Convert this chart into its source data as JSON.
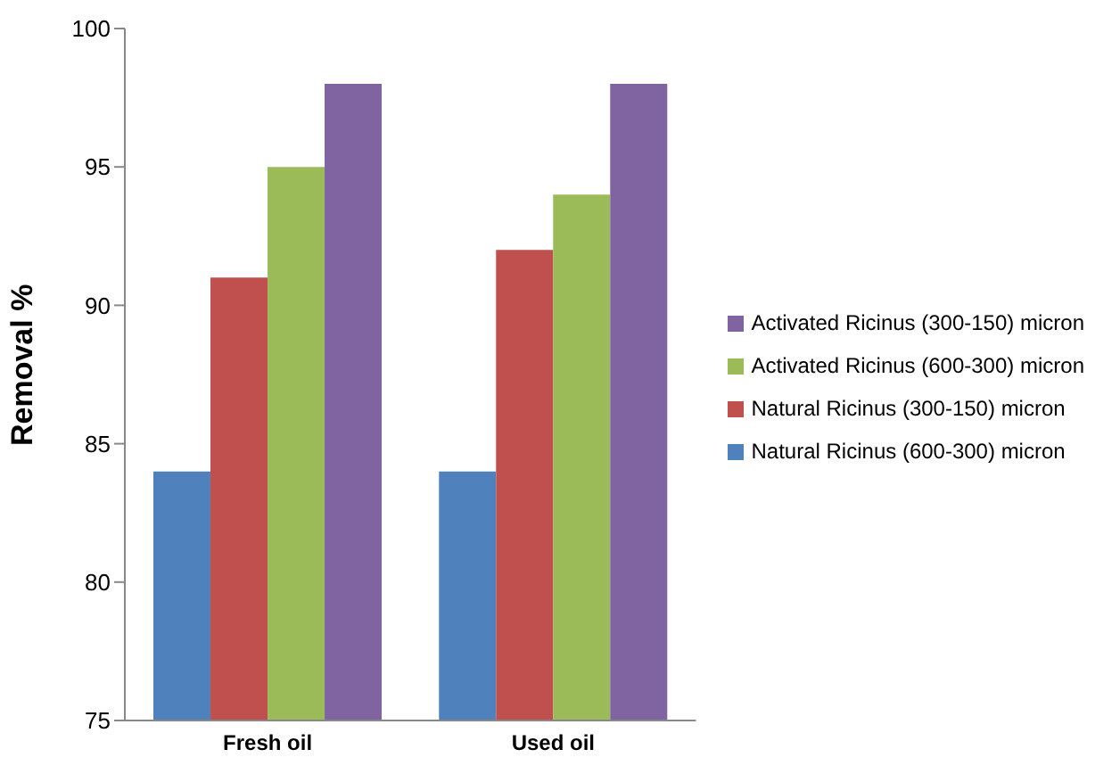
{
  "chart_data": {
    "type": "bar",
    "ylabel": "Removal %",
    "categories": [
      "Fresh oil",
      "Used oil"
    ],
    "series": [
      {
        "name": "Natural Ricinus (600-300) micron",
        "color": "#4f81bd",
        "values": [
          84,
          84
        ]
      },
      {
        "name": "Natural Ricinus (300-150) micron",
        "color": "#c0504d",
        "values": [
          91,
          92
        ]
      },
      {
        "name": "Activated Ricinus (600-300) micron",
        "color": "#9bbb59",
        "values": [
          95,
          94
        ]
      },
      {
        "name": "Activated Ricinus (300-150) micron",
        "color": "#8064a2",
        "values": [
          98,
          98
        ]
      }
    ],
    "ylim": [
      75,
      100
    ],
    "yticks": [
      75,
      80,
      85,
      90,
      95,
      100
    ],
    "grid": false,
    "legend": "right"
  }
}
